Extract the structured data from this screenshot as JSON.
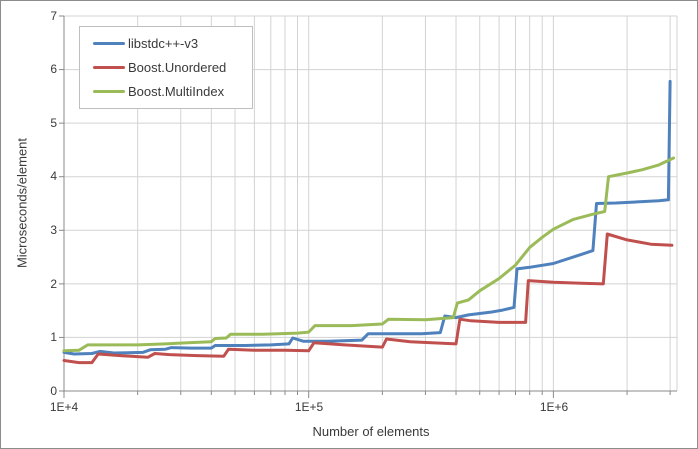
{
  "chart_data": {
    "type": "line",
    "title": "",
    "xlabel": "Number of elements",
    "ylabel": "Microseconds/element",
    "x_scale": "log",
    "xlim": [
      10000,
      3200000
    ],
    "ylim": [
      0,
      7
    ],
    "grid": true,
    "legend_position": "top-left-inside",
    "yticks": [
      0,
      1,
      2,
      3,
      4,
      5,
      6,
      7
    ],
    "ytick_labels": [
      "0",
      "1",
      "2",
      "3",
      "4",
      "5",
      "6",
      "7"
    ],
    "xticks": [
      {
        "value": 10000,
        "label": "1E+4"
      },
      {
        "value": 100000,
        "label": "1E+5"
      },
      {
        "value": 1000000,
        "label": "1E+6"
      }
    ],
    "minor_xticks": [
      20000,
      30000,
      40000,
      50000,
      60000,
      70000,
      80000,
      90000,
      200000,
      300000,
      400000,
      500000,
      600000,
      700000,
      800000,
      900000,
      2000000,
      3000000
    ],
    "colors": {
      "grid": "#D3D3D3",
      "axis": "#898989",
      "text": "#3A3A3A",
      "legend_border": "#BFBFBF"
    },
    "series": [
      {
        "name": "libstdc++-v3",
        "color": "#4F81BD",
        "points": [
          [
            10000,
            0.72
          ],
          [
            11000,
            0.69
          ],
          [
            13000,
            0.7
          ],
          [
            14000,
            0.74
          ],
          [
            16000,
            0.71
          ],
          [
            21000,
            0.72
          ],
          [
            22500,
            0.77
          ],
          [
            26000,
            0.78
          ],
          [
            27500,
            0.81
          ],
          [
            33000,
            0.8
          ],
          [
            40000,
            0.8
          ],
          [
            41500,
            0.85
          ],
          [
            55000,
            0.85
          ],
          [
            70000,
            0.86
          ],
          [
            83000,
            0.88
          ],
          [
            86000,
            0.99
          ],
          [
            95000,
            0.93
          ],
          [
            120000,
            0.93
          ],
          [
            165000,
            0.95
          ],
          [
            175000,
            1.07
          ],
          [
            290000,
            1.07
          ],
          [
            345000,
            1.09
          ],
          [
            360000,
            1.4
          ],
          [
            400000,
            1.37
          ],
          [
            450000,
            1.42
          ],
          [
            550000,
            1.47
          ],
          [
            620000,
            1.51
          ],
          [
            690000,
            1.56
          ],
          [
            710000,
            2.28
          ],
          [
            800000,
            2.31
          ],
          [
            1000000,
            2.38
          ],
          [
            1300000,
            2.55
          ],
          [
            1450000,
            2.62
          ],
          [
            1500000,
            3.5
          ],
          [
            1800000,
            3.51
          ],
          [
            2200000,
            3.53
          ],
          [
            2700000,
            3.55
          ],
          [
            2950000,
            3.57
          ],
          [
            3000000,
            5.78
          ]
        ]
      },
      {
        "name": "Boost.Unordered",
        "color": "#C0504D",
        "points": [
          [
            10000,
            0.57
          ],
          [
            11500,
            0.53
          ],
          [
            13000,
            0.53
          ],
          [
            13800,
            0.69
          ],
          [
            17000,
            0.66
          ],
          [
            22000,
            0.63
          ],
          [
            23500,
            0.7
          ],
          [
            27000,
            0.68
          ],
          [
            35000,
            0.66
          ],
          [
            45000,
            0.65
          ],
          [
            47000,
            0.78
          ],
          [
            60000,
            0.76
          ],
          [
            80000,
            0.76
          ],
          [
            100000,
            0.75
          ],
          [
            105000,
            0.9
          ],
          [
            140000,
            0.86
          ],
          [
            200000,
            0.82
          ],
          [
            208000,
            0.97
          ],
          [
            260000,
            0.92
          ],
          [
            400000,
            0.88
          ],
          [
            415000,
            1.34
          ],
          [
            460000,
            1.31
          ],
          [
            600000,
            1.28
          ],
          [
            770000,
            1.28
          ],
          [
            790000,
            2.06
          ],
          [
            1000000,
            2.03
          ],
          [
            1300000,
            2.01
          ],
          [
            1600000,
            2.0
          ],
          [
            1660000,
            2.93
          ],
          [
            2000000,
            2.82
          ],
          [
            2500000,
            2.74
          ],
          [
            3050000,
            2.72
          ]
        ]
      },
      {
        "name": "Boost.MultiIndex",
        "color": "#9BBB59",
        "points": [
          [
            10000,
            0.75
          ],
          [
            11500,
            0.76
          ],
          [
            12500,
            0.86
          ],
          [
            20000,
            0.86
          ],
          [
            26000,
            0.88
          ],
          [
            32000,
            0.9
          ],
          [
            40000,
            0.92
          ],
          [
            41500,
            0.98
          ],
          [
            46000,
            0.99
          ],
          [
            48000,
            1.06
          ],
          [
            65000,
            1.06
          ],
          [
            90000,
            1.08
          ],
          [
            100000,
            1.1
          ],
          [
            106000,
            1.22
          ],
          [
            150000,
            1.22
          ],
          [
            200000,
            1.25
          ],
          [
            212000,
            1.34
          ],
          [
            300000,
            1.33
          ],
          [
            390000,
            1.37
          ],
          [
            405000,
            1.64
          ],
          [
            450000,
            1.7
          ],
          [
            500000,
            1.87
          ],
          [
            600000,
            2.1
          ],
          [
            700000,
            2.35
          ],
          [
            800000,
            2.68
          ],
          [
            900000,
            2.87
          ],
          [
            1000000,
            3.02
          ],
          [
            1200000,
            3.2
          ],
          [
            1450000,
            3.3
          ],
          [
            1620000,
            3.35
          ],
          [
            1680000,
            4.0
          ],
          [
            2000000,
            4.07
          ],
          [
            2300000,
            4.13
          ],
          [
            2700000,
            4.22
          ],
          [
            3100000,
            4.35
          ]
        ]
      }
    ]
  }
}
